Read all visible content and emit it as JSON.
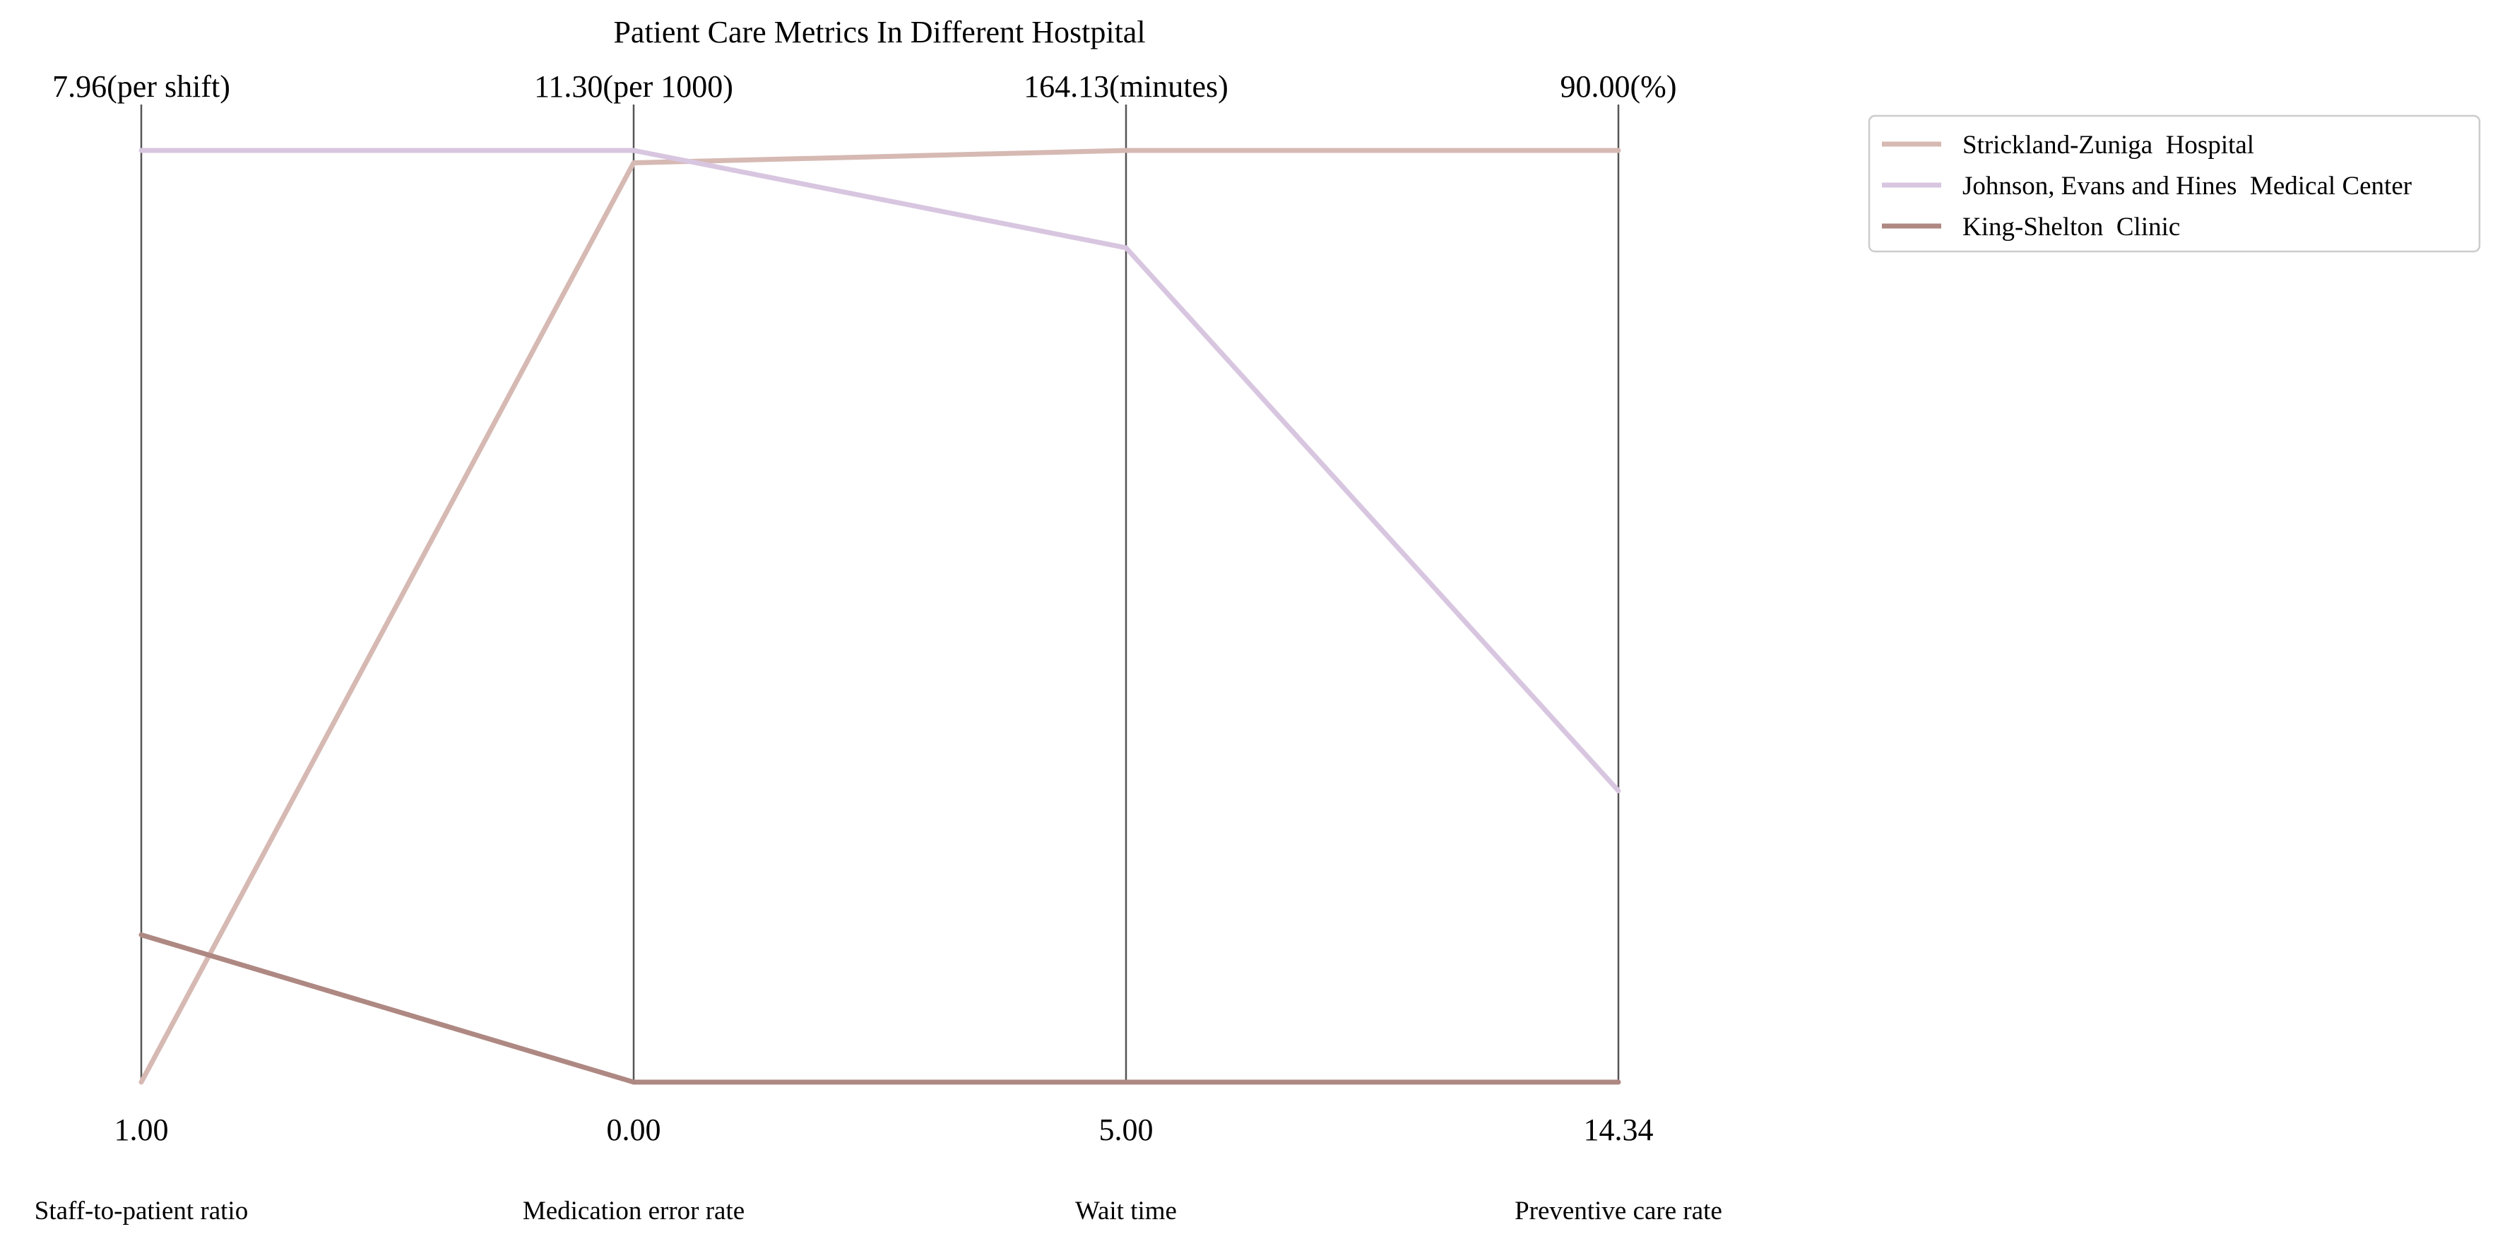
{
  "chart_data": {
    "type": "parallel_coordinates",
    "title": "Patient Care Metrics In Different Hostpital",
    "axes": [
      {
        "name": "Staff-to-patient ratio",
        "min": 1.0,
        "max": 7.96,
        "min_label": "1.00",
        "max_label": "7.96(per shift)"
      },
      {
        "name": "Medication error rate",
        "min": 0.0,
        "max": 11.3,
        "min_label": "0.00",
        "max_label": "11.30(per 1000)"
      },
      {
        "name": "Wait time",
        "min": 5.0,
        "max": 164.13,
        "min_label": "5.00",
        "max_label": "164.13(minutes)"
      },
      {
        "name": "Preventive care rate",
        "min": 14.34,
        "max": 90.0,
        "min_label": "14.34",
        "max_label": "90.00(%)"
      }
    ],
    "series": [
      {
        "name": "Strickland-Zuniga  Hospital",
        "color": "#d6b9b3",
        "values": [
          1.0,
          11.15,
          164.13,
          90.0
        ]
      },
      {
        "name": "Johnson, Evans and Hines  Medical Center",
        "color": "#d8c6e0",
        "values": [
          7.96,
          11.3,
          147.5,
          38.0
        ]
      },
      {
        "name": "King-Shelton  Clinic",
        "color": "#ae8882",
        "values": [
          2.1,
          0.0,
          5.0,
          14.34
        ]
      }
    ],
    "legend_position": "top-right",
    "grid": false
  }
}
